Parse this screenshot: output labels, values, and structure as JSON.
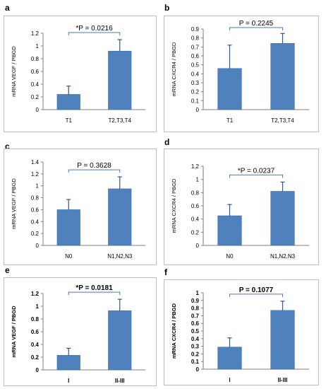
{
  "colors": {
    "bar": "#4f81bd",
    "bar_edge": "#3a6aa8",
    "error": "#2f5597",
    "bracket": "#4a7bb7",
    "axis": "#808080"
  },
  "chart_data": [
    {
      "panel": "a",
      "type": "bar",
      "ylabel": "mRNA VEGF / PBGD",
      "ylim": [
        0,
        1.2
      ],
      "yticks": [
        "0",
        "0.2",
        "0.4",
        "0.6",
        "0.8",
        "1",
        "1.2"
      ],
      "categories": [
        "T1",
        "T2,T3,T4"
      ],
      "values": [
        0.24,
        0.92
      ],
      "errors": [
        0.13,
        0.18
      ],
      "annotation": "*P = 0.0216",
      "bold": false,
      "annotation_bold": false
    },
    {
      "panel": "b",
      "type": "bar",
      "ylabel": "mRNA CXCR4 / PBGD",
      "ylim": [
        0,
        0.9
      ],
      "yticks": [
        "0",
        "0.1",
        "0.2",
        "0.3",
        "0.4",
        "0.5",
        "0.6",
        "0.7",
        "0.8",
        "0.9"
      ],
      "categories": [
        "T1",
        "T2,T3,T4"
      ],
      "values": [
        0.46,
        0.74
      ],
      "errors": [
        0.26,
        0.11
      ],
      "annotation": "P = 0.2245",
      "bold": false,
      "annotation_bold": false
    },
    {
      "panel": "c",
      "type": "bar",
      "ylabel": "mRNA VEGF / PBGD",
      "ylim": [
        0,
        1.4
      ],
      "yticks": [
        "0",
        "0.2",
        "0.4",
        "0.6",
        "0.8",
        "1",
        "1.2",
        "1.4"
      ],
      "categories": [
        "N0",
        "N1,N2,N3"
      ],
      "values": [
        0.6,
        0.95
      ],
      "errors": [
        0.17,
        0.2
      ],
      "annotation": "P = 0.3628",
      "bold": false,
      "annotation_bold": false
    },
    {
      "panel": "d",
      "type": "bar",
      "ylabel": "mRNA CXCR4 / PBGD",
      "ylim": [
        0,
        1.2
      ],
      "yticks": [
        "0",
        "0.2",
        "0.4",
        "0.6",
        "0.8",
        "1",
        "1.2"
      ],
      "categories": [
        "N0",
        "N1,N2,N3"
      ],
      "values": [
        0.45,
        0.82
      ],
      "errors": [
        0.17,
        0.14
      ],
      "annotation": "*P = 0.0237",
      "bold": false,
      "annotation_bold": false
    },
    {
      "panel": "e",
      "type": "bar",
      "ylabel": "mRNA VEGF / PBGD",
      "ylim": [
        0,
        1.2
      ],
      "yticks": [
        "0",
        "0.2",
        "0.4",
        "0.6",
        "0.8",
        "1",
        "1.2"
      ],
      "categories": [
        "I",
        "II-III"
      ],
      "values": [
        0.23,
        0.93
      ],
      "errors": [
        0.11,
        0.18
      ],
      "annotation": "*P = 0.0181",
      "bold": true,
      "annotation_bold": true
    },
    {
      "panel": "f",
      "type": "bar",
      "ylabel": "mRNA CXCR4 / PBGD",
      "ylim": [
        0,
        1
      ],
      "yticks": [
        "0",
        "0.1",
        "0.2",
        "0.3",
        "0.4",
        "0.5",
        "0.6",
        "0.7",
        "0.8",
        "0.9",
        "1"
      ],
      "categories": [
        "I",
        "II-III"
      ],
      "values": [
        0.29,
        0.77
      ],
      "errors": [
        0.12,
        0.12
      ],
      "annotation": "P = 0.1077",
      "bold": true,
      "annotation_bold": true
    }
  ]
}
